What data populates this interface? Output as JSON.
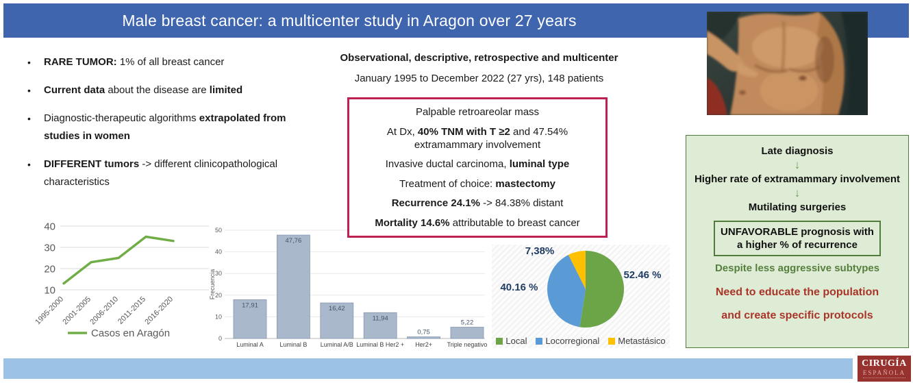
{
  "header": {
    "title": "Male breast cancer: a multicenter study in Aragon over 27 years"
  },
  "intro": {
    "bullets": [
      [
        {
          "t": "RARE TUMOR:",
          "b": 1
        },
        {
          "t": " 1% of all breast cancer",
          "b": 0
        }
      ],
      [
        {
          "t": "Current data",
          "b": 1
        },
        {
          "t": " about the disease are ",
          "b": 0
        },
        {
          "t": "limited",
          "b": 1
        }
      ],
      [
        {
          "t": "Diagnostic-therapeutic algorithms ",
          "b": 0
        },
        {
          "t": "extrapolated from studies in women",
          "b": 1
        }
      ],
      [
        {
          "t": "DIFFERENT tumors",
          "b": 1
        },
        {
          "t": " -> different clinicopathological characteristics",
          "b": 0
        }
      ]
    ]
  },
  "study_design": {
    "line1": "Observational, descriptive, retrospective and multicenter",
    "line2": "January 1995 to December 2022 (27 yrs), 148 patients"
  },
  "key_findings": [
    [
      {
        "t": "Palpable retroareolar mass",
        "b": 0
      }
    ],
    [
      {
        "t": "At Dx, ",
        "b": 0
      },
      {
        "t": "40% TNM with T ≥2",
        "b": 1
      },
      {
        "t": " and 47.54% extramammary involvement",
        "b": 0
      }
    ],
    [
      {
        "t": "Invasive ductal carcinoma, ",
        "b": 0
      },
      {
        "t": "luminal type",
        "b": 1
      }
    ],
    [
      {
        "t": "Treatment of choice: ",
        "b": 0
      },
      {
        "t": "mastectomy",
        "b": 1
      }
    ],
    [
      {
        "t": "Recurrence 24.1%",
        "b": 1
      },
      {
        "t": " -> 84.38% distant",
        "b": 0
      }
    ],
    [
      {
        "t": "Mortality 14.6%",
        "b": 1
      },
      {
        "t": " attributable to breast cancer",
        "b": 0
      }
    ]
  ],
  "conclusions": {
    "steps": [
      "Late diagnosis",
      "Higher rate of extramammary involvement",
      "Mutilating surgeries"
    ],
    "arrow": "↓",
    "prognosis": "UNFAVORABLE prognosis with a higher % of recurrence",
    "subnote": "Despite less aggressive subtypes",
    "cta_line1": "Need to educate the population",
    "cta_line2": "and create specific protocols"
  },
  "chart_data": [
    {
      "type": "line",
      "title": "",
      "categories": [
        "1995-2000",
        "2001-2005",
        "2006-2010",
        "2011-2015",
        "2016-2020"
      ],
      "values": [
        13,
        23,
        25,
        35,
        33
      ],
      "yticks": [
        10,
        20,
        30,
        40
      ],
      "ylim": [
        10,
        42
      ],
      "legend": "Casos en Aragón",
      "legend_position": "bottom",
      "grid": true,
      "color": "#70AD47"
    },
    {
      "type": "bar",
      "title": "",
      "categories": [
        "Luminal A",
        "Luminal B",
        "Luminal A/B",
        "Luminal B Her2 +",
        "Her2+",
        "Triple negativo"
      ],
      "values": [
        17.91,
        47.76,
        16.42,
        11.94,
        0.75,
        5.22
      ],
      "value_labels": [
        "17,91",
        "47,76",
        "16,42",
        "11,94",
        "0,75",
        "5,22"
      ],
      "yticks": [
        0,
        10,
        20,
        30,
        40,
        50
      ],
      "ylim": [
        0,
        50
      ],
      "xlabel": "",
      "ylabel": "Frecuencia",
      "grid": true,
      "bar_color": "#A9B8CB",
      "bar_border": "#8496B0",
      "label_color": "#44546A"
    },
    {
      "type": "pie",
      "title": "",
      "labels": [
        "Local",
        "Locorregional",
        "Metastásico"
      ],
      "values": [
        52.46,
        40.16,
        7.38
      ],
      "display_labels": [
        "52.46 %",
        "40.16 %",
        "7,38%"
      ],
      "colors": [
        "#6BA547",
        "#5B9BD5",
        "#FFC000"
      ],
      "legend_position": "bottom",
      "start_angle_deg": -90,
      "direction": "clockwise"
    }
  ],
  "footer": {
    "logo_title": "CIRUGÍA",
    "logo_subtitle": "ESPAÑOLA"
  },
  "colors": {
    "header_blue": "#3F65AF",
    "findings_border_red": "#BE2050",
    "conclusions_bg_green": "#DFECD5",
    "conclusions_border_green": "#4E7A3A",
    "cta_red": "#A93428",
    "footer_blue": "#9CC2E5",
    "logo_maroon": "#97322F"
  }
}
